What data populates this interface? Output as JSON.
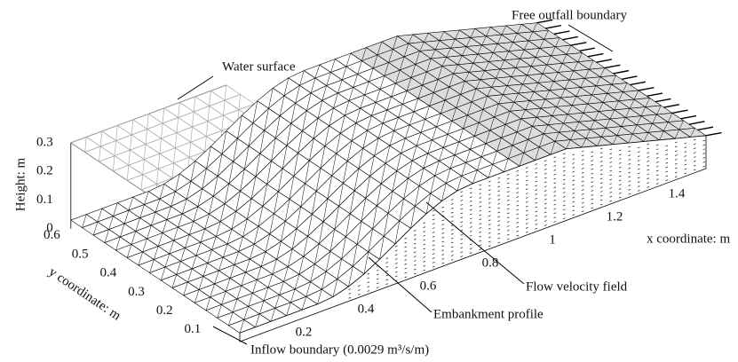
{
  "annotations": {
    "water_surface": "Water surface",
    "free_outfall": "Free outfall boundary",
    "flow_velocity": "Flow velocity field",
    "embankment": "Embankment profile",
    "inflow": "Inflow boundary (0.0029 m³/s/m)"
  },
  "axes": {
    "z": {
      "label": "Height: m",
      "ticks": [
        0,
        0.1,
        0.2,
        0.3
      ]
    },
    "y": {
      "label": "y coordinate: m",
      "ticks": [
        0.1,
        0.2,
        0.3,
        0.4,
        0.5,
        0.6
      ]
    },
    "x": {
      "label": "x coordinate: m",
      "ticks": [
        0.2,
        0.4,
        0.6,
        0.8,
        1,
        1.2,
        1.4
      ]
    }
  }
}
